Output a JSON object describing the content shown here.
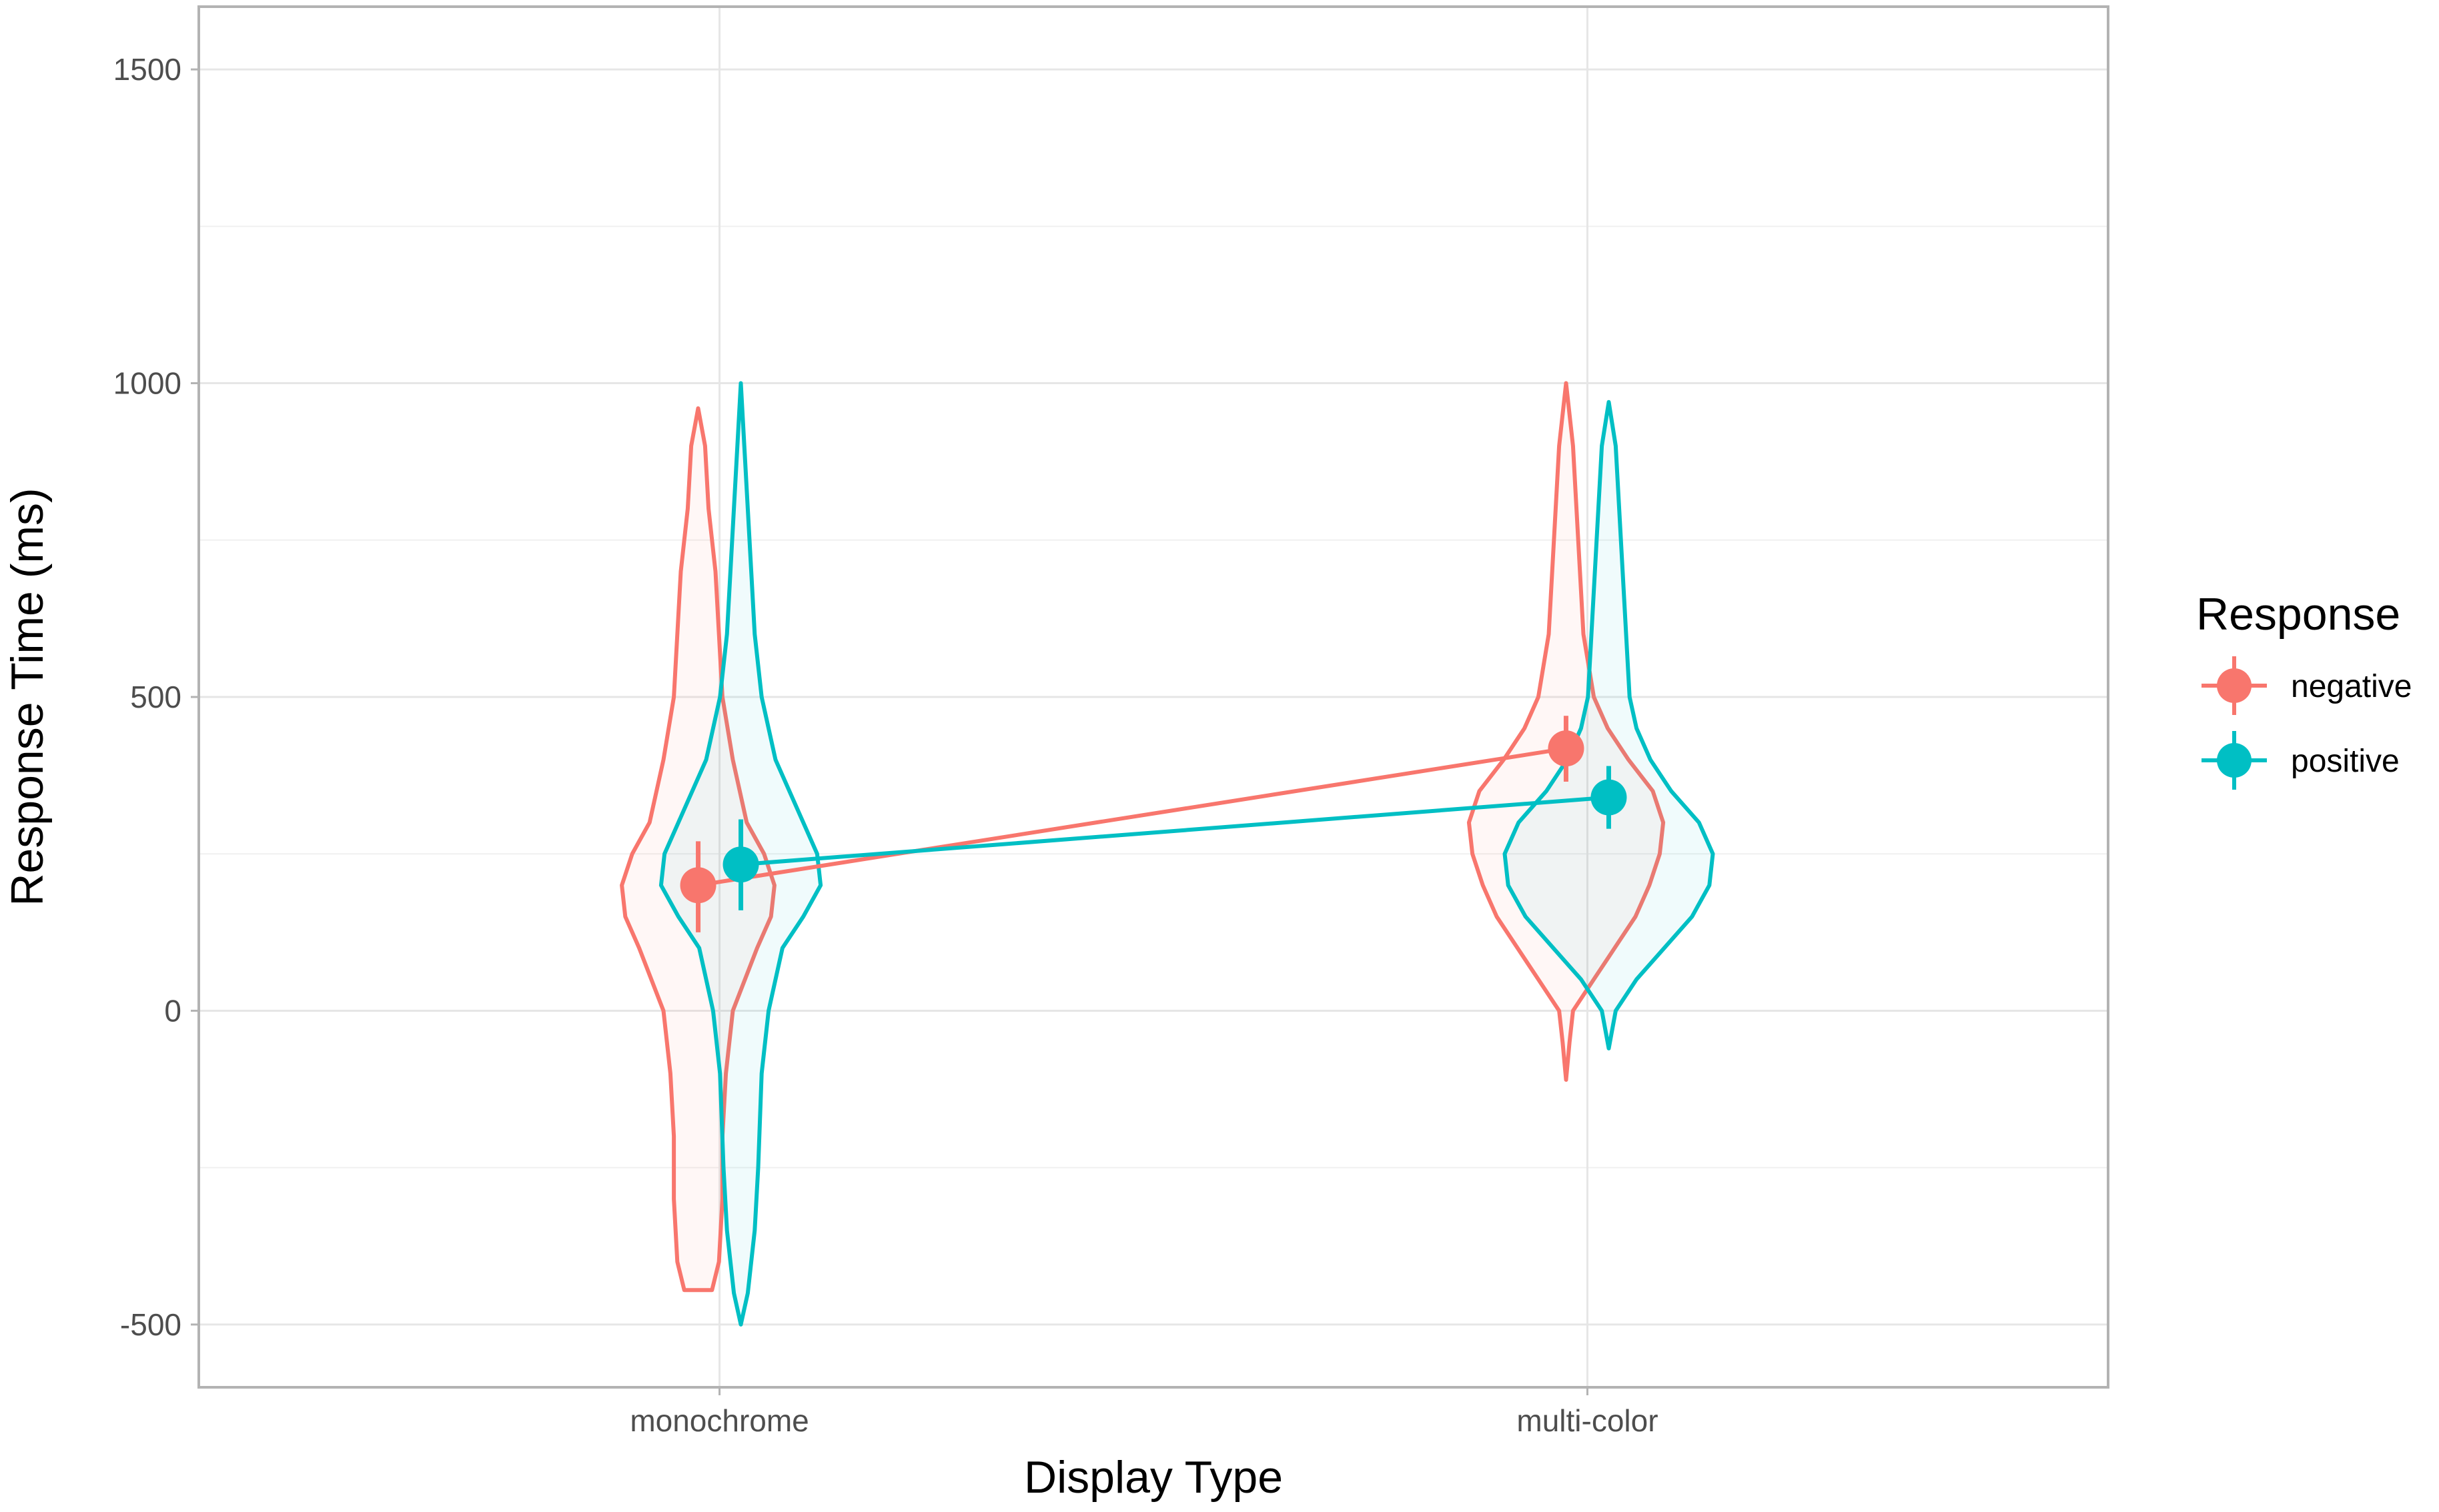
{
  "chart_data": {
    "type": "violin",
    "xlabel": "Display Type",
    "ylabel": "Response Time (ms)",
    "categories": [
      "monochrome",
      "multi-color"
    ],
    "ylim": [
      -600,
      1600
    ],
    "y_ticks": [
      -500,
      0,
      500,
      1000,
      1500
    ],
    "grid": true,
    "legend": {
      "title": "Response",
      "placement": "right",
      "entries": [
        "negative",
        "positive"
      ]
    },
    "series": [
      {
        "name": "negative",
        "color": "#F8766D",
        "points": [
          {
            "category": "monochrome",
            "mean": 200,
            "ci_low": 125,
            "ci_high": 270
          },
          {
            "category": "multi-color",
            "mean": 418,
            "ci_low": 365,
            "ci_high": 470
          }
        ],
        "violins": [
          {
            "category": "monochrome",
            "min": -445,
            "max": 960,
            "profile": [
              [
                -445,
                0.04
              ],
              [
                -400,
                0.06
              ],
              [
                -300,
                0.07
              ],
              [
                -200,
                0.07
              ],
              [
                -100,
                0.08
              ],
              [
                0,
                0.1
              ],
              [
                100,
                0.17
              ],
              [
                150,
                0.21
              ],
              [
                200,
                0.22
              ],
              [
                250,
                0.19
              ],
              [
                300,
                0.14
              ],
              [
                400,
                0.1
              ],
              [
                500,
                0.07
              ],
              [
                600,
                0.06
              ],
              [
                700,
                0.05
              ],
              [
                800,
                0.03
              ],
              [
                900,
                0.02
              ],
              [
                960,
                0.0
              ]
            ]
          },
          {
            "category": "multi-color",
            "min": -110,
            "max": 1000,
            "profile": [
              [
                -110,
                0.0
              ],
              [
                -50,
                0.01
              ],
              [
                0,
                0.02
              ],
              [
                50,
                0.08
              ],
              [
                100,
                0.14
              ],
              [
                150,
                0.2
              ],
              [
                200,
                0.24
              ],
              [
                250,
                0.27
              ],
              [
                300,
                0.28
              ],
              [
                350,
                0.25
              ],
              [
                400,
                0.18
              ],
              [
                450,
                0.12
              ],
              [
                500,
                0.08
              ],
              [
                600,
                0.05
              ],
              [
                700,
                0.04
              ],
              [
                800,
                0.03
              ],
              [
                900,
                0.02
              ],
              [
                1000,
                0.0
              ]
            ]
          }
        ]
      },
      {
        "name": "positive",
        "color": "#00BFC4",
        "points": [
          {
            "category": "monochrome",
            "mean": 233,
            "ci_low": 160,
            "ci_high": 305
          },
          {
            "category": "multi-color",
            "mean": 340,
            "ci_low": 290,
            "ci_high": 390
          }
        ],
        "violins": [
          {
            "category": "monochrome",
            "min": -500,
            "max": 1000,
            "profile": [
              [
                -500,
                0.0
              ],
              [
                -450,
                0.02
              ],
              [
                -350,
                0.04
              ],
              [
                -250,
                0.05
              ],
              [
                -100,
                0.06
              ],
              [
                0,
                0.08
              ],
              [
                100,
                0.12
              ],
              [
                150,
                0.18
              ],
              [
                200,
                0.23
              ],
              [
                250,
                0.22
              ],
              [
                300,
                0.18
              ],
              [
                400,
                0.1
              ],
              [
                500,
                0.06
              ],
              [
                600,
                0.04
              ],
              [
                700,
                0.03
              ],
              [
                800,
                0.02
              ],
              [
                900,
                0.01
              ],
              [
                1000,
                0.0
              ]
            ]
          },
          {
            "category": "multi-color",
            "min": -60,
            "max": 970,
            "profile": [
              [
                -60,
                0.0
              ],
              [
                -30,
                0.01
              ],
              [
                0,
                0.02
              ],
              [
                50,
                0.08
              ],
              [
                100,
                0.16
              ],
              [
                150,
                0.24
              ],
              [
                200,
                0.29
              ],
              [
                250,
                0.3
              ],
              [
                300,
                0.26
              ],
              [
                350,
                0.18
              ],
              [
                400,
                0.12
              ],
              [
                450,
                0.08
              ],
              [
                500,
                0.06
              ],
              [
                600,
                0.05
              ],
              [
                700,
                0.04
              ],
              [
                800,
                0.03
              ],
              [
                900,
                0.02
              ],
              [
                970,
                0.0
              ]
            ]
          }
        ]
      }
    ]
  }
}
